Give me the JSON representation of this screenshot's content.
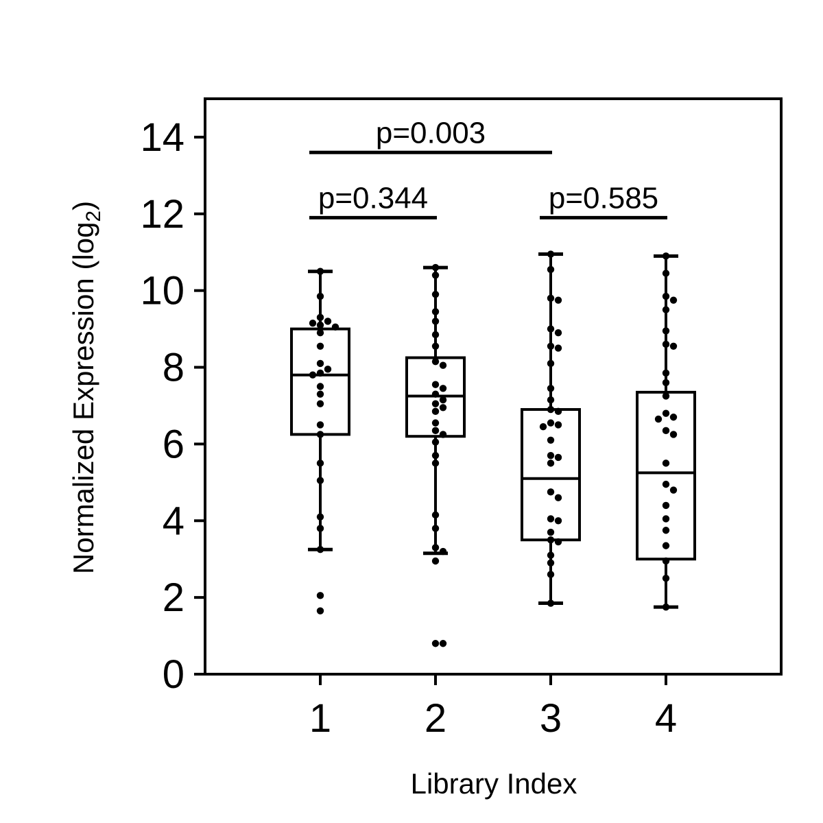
{
  "chart_data": {
    "type": "box",
    "xlabel": "Library Index",
    "ylabel_main": "Normalized Expression (log",
    "ylabel_sub": "2",
    "ylabel_close": ")",
    "xlim": [
      0,
      5
    ],
    "ylim": [
      0,
      15
    ],
    "yticks": [
      0,
      2,
      4,
      6,
      8,
      10,
      12,
      14
    ],
    "categories": [
      "1",
      "2",
      "3",
      "4"
    ],
    "boxes": [
      {
        "x": 1,
        "q1": 6.25,
        "median": 7.8,
        "q3": 9.0,
        "whisker_low": 3.25,
        "whisker_high": 10.5
      },
      {
        "x": 2,
        "q1": 6.2,
        "median": 7.25,
        "q3": 8.25,
        "whisker_low": 3.15,
        "whisker_high": 10.6
      },
      {
        "x": 3,
        "q1": 3.5,
        "median": 5.1,
        "q3": 6.9,
        "whisker_low": 1.85,
        "whisker_high": 10.95
      },
      {
        "x": 4,
        "q1": 3.0,
        "median": 5.25,
        "q3": 7.35,
        "whisker_low": 1.75,
        "whisker_high": 10.9
      }
    ],
    "points": [
      [
        10.5,
        9.85,
        9.3,
        9.2,
        9.15,
        9.1,
        9.05,
        8.9,
        8.55,
        8.1,
        7.95,
        7.85,
        7.8,
        7.5,
        7.3,
        7.05,
        6.5,
        6.25,
        5.5,
        5.05,
        4.1,
        3.8,
        3.25,
        2.05,
        1.65
      ],
      [
        10.6,
        10.4,
        9.9,
        9.45,
        9.2,
        8.85,
        8.55,
        8.15,
        8.05,
        7.55,
        7.45,
        7.3,
        7.15,
        7.05,
        6.95,
        6.85,
        6.55,
        6.35,
        6.25,
        6.05,
        5.7,
        5.5,
        4.15,
        3.8,
        3.3,
        3.2,
        2.95,
        0.8,
        0.8
      ],
      [
        10.95,
        10.55,
        9.8,
        9.75,
        9.0,
        8.9,
        8.55,
        8.5,
        8.1,
        7.45,
        7.15,
        6.9,
        6.85,
        6.55,
        6.5,
        6.45,
        6.1,
        5.7,
        5.65,
        5.5,
        4.75,
        4.6,
        4.05,
        4.0,
        3.7,
        3.5,
        3.45,
        3.1,
        2.9,
        2.6,
        1.85
      ],
      [
        10.9,
        10.45,
        9.85,
        9.75,
        9.5,
        8.95,
        8.6,
        8.55,
        7.85,
        7.6,
        7.25,
        6.8,
        6.7,
        6.65,
        6.35,
        6.25,
        5.5,
        4.95,
        4.8,
        4.4,
        4.05,
        3.75,
        3.35,
        2.95,
        2.5,
        1.75
      ]
    ],
    "comparisons": [
      {
        "from": 1,
        "to": 3,
        "y": 13.6,
        "label": "p=0.003"
      },
      {
        "from": 1,
        "to": 2,
        "y": 11.9,
        "label": "p=0.344"
      },
      {
        "from": 3,
        "to": 4,
        "y": 11.9,
        "label": "p=0.585"
      }
    ],
    "colors": {
      "ink": "#000000",
      "background": "#ffffff"
    },
    "grid": false
  }
}
